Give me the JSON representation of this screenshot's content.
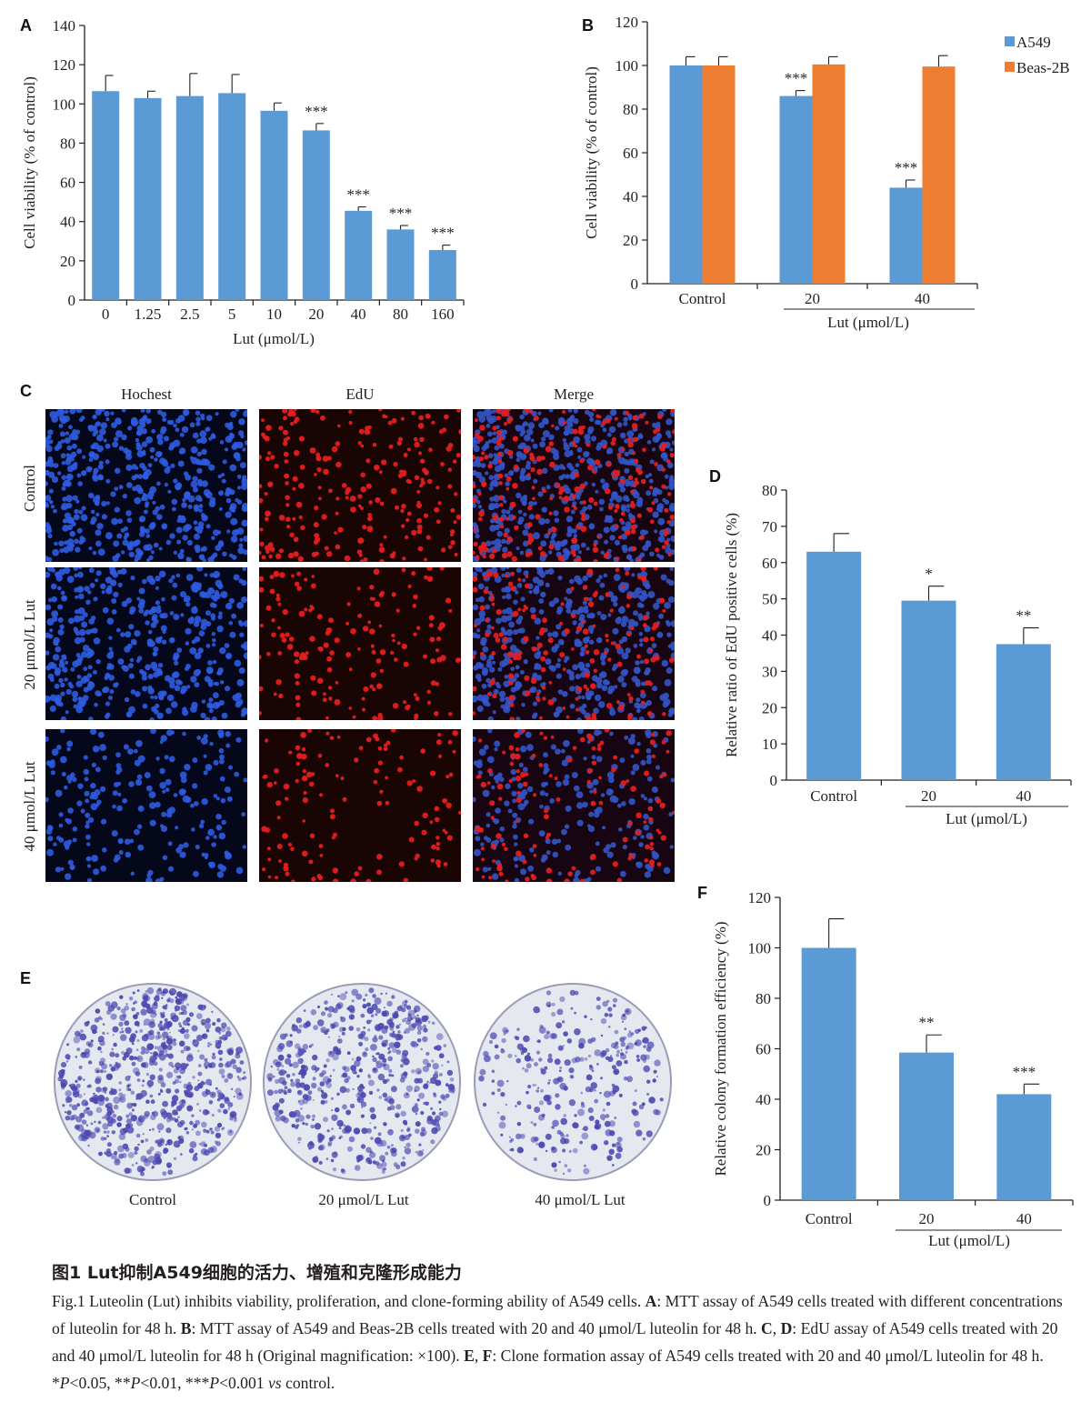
{
  "panels": {
    "A": "A",
    "B": "B",
    "C": "C",
    "D": "D",
    "E": "E",
    "F": "F"
  },
  "panel_c": {
    "column_titles": [
      "Hochest",
      "EdU",
      "Merge"
    ],
    "row_labels": [
      "Control",
      "20 μmol/L Lut",
      "40 μmol/L Lut"
    ]
  },
  "panel_e": {
    "dish_labels": [
      "Control",
      "20 μmol/L Lut",
      "40 μmol/L Lut"
    ]
  },
  "caption": {
    "cn": "图1 Lut抑制A549细胞的活力、增殖和克隆形成能力",
    "en_intro": "Fig.1 Luteolin (Lut) inhibits viability, proliferation, and clone-forming ability of A549 cells. ",
    "A_key": "A",
    "A_text": ": MTT assay of A549 cells treated with different concentrations of luteolin for 48 h. ",
    "B_key": "B",
    "B_text": ": MTT assay of A549 and Beas-2B cells treated with 20 and 40 μmol/L luteolin for 48 h. ",
    "CD_key_1": "C",
    "CD_sep": ", ",
    "CD_key_2": "D",
    "CD_text": ": EdU assay of A549 cells treated with 20 and 40 μmol/L luteolin for 48 h (Original magnification: ×100). ",
    "EF_key_1": "E",
    "EF_sep": ", ",
    "EF_key_2": "F",
    "EF_text": ": Clone formation assay of A549 cells treated with 20 and 40 μmol/L luteolin for 48 h. *",
    "p1": "P",
    "t1": "<0.05, **",
    "p2": "P",
    "t2": "<0.01, ***",
    "p3": "P",
    "t3": "<0.001 ",
    "vs": "vs",
    "t4": " control."
  },
  "colors": {
    "blue": "#5b9bd5",
    "orange": "#ed7d31",
    "axis": "#231f20"
  },
  "chart_data": [
    {
      "id": "A",
      "type": "bar",
      "ylabel": "Cell viability (% of control)",
      "xlabel": "Lut (μmol/L)",
      "ylim": [
        0,
        140
      ],
      "yticks": [
        0,
        20,
        40,
        60,
        80,
        100,
        120,
        140
      ],
      "categories": [
        "0",
        "1.25",
        "2.5",
        "5",
        "10",
        "20",
        "40",
        "80",
        "160"
      ],
      "series": [
        {
          "color": "#5b9bd5",
          "values": [
            106.5,
            103,
            104,
            105.5,
            96.5,
            86.5,
            45.5,
            36,
            25.5
          ],
          "errors": [
            8,
            3.5,
            11.5,
            9.5,
            4,
            3.5,
            2,
            2,
            2.5
          ],
          "annotations": [
            "",
            "",
            "",
            "",
            "",
            "***",
            "***",
            "***",
            "***"
          ]
        }
      ]
    },
    {
      "id": "B",
      "type": "bar",
      "ylabel": "Cell viability (% of control)",
      "xlabel": "Lut (μmol/L)",
      "ylim": [
        0,
        120
      ],
      "yticks": [
        0,
        20,
        40,
        60,
        80,
        100,
        120
      ],
      "categories": [
        "Control",
        "20",
        "40"
      ],
      "legend_position": "top-right",
      "series": [
        {
          "name": "A549",
          "color": "#5b9bd5",
          "values": [
            100,
            86,
            44
          ],
          "errors": [
            4,
            2.5,
            3.5
          ],
          "annotations": [
            "",
            "***",
            "***"
          ]
        },
        {
          "name": "Beas-2B",
          "color": "#ed7d31",
          "values": [
            100,
            100.5,
            99.5
          ],
          "errors": [
            4,
            3.5,
            5
          ],
          "annotations": [
            "",
            "",
            ""
          ]
        }
      ]
    },
    {
      "id": "D",
      "type": "bar",
      "ylabel": "Relative ratio of EdU positive cells (%)",
      "xlabel": "Lut (μmol/L)",
      "ylim": [
        0,
        80
      ],
      "yticks": [
        0,
        10,
        20,
        30,
        40,
        50,
        60,
        70,
        80
      ],
      "categories": [
        "Control",
        "20",
        "40"
      ],
      "series": [
        {
          "color": "#5b9bd5",
          "values": [
            63,
            49.5,
            37.5
          ],
          "errors": [
            5,
            4,
            4.5
          ],
          "annotations": [
            "",
            "*",
            "**"
          ]
        }
      ]
    },
    {
      "id": "F",
      "type": "bar",
      "ylabel": "Relative colony formation efficiency (%)",
      "xlabel": "Lut (μmol/L)",
      "ylim": [
        0,
        120
      ],
      "yticks": [
        0,
        20,
        40,
        60,
        80,
        100,
        120
      ],
      "categories": [
        "Control",
        "20",
        "40"
      ],
      "series": [
        {
          "color": "#5b9bd5",
          "values": [
            100,
            58.5,
            42
          ],
          "errors": [
            11.5,
            7,
            4
          ],
          "annotations": [
            "",
            "**",
            "***"
          ]
        }
      ]
    }
  ]
}
